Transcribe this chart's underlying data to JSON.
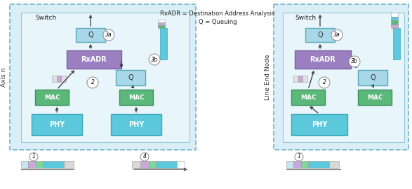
{
  "bg_outer": "#ddeef5",
  "color_phy": "#5bc8dc",
  "color_mac": "#5cb87a",
  "color_rxadr": "#9b7fc0",
  "color_q": "#a8d8e8",
  "color_bar_blue": "#5bc8dc",
  "color_bar_green": "#5cb87a",
  "color_bar_purple": "#c8a8d8",
  "color_bar_gray": "#d0d0d0",
  "color_bar_white": "#ffffff",
  "color_bar_lightblue": "#c0e8f4",
  "dash_color": "#7ab8cc",
  "text_switch": "Switch",
  "text_axis_n": "Axis n",
  "text_line_end": "Line End Node",
  "legend_text1": "RxADR = Destination Address Analysis",
  "legend_text2": "Q = Queuing",
  "inner_bg": "#c8e8f4",
  "outer_bg": "#daeef8"
}
